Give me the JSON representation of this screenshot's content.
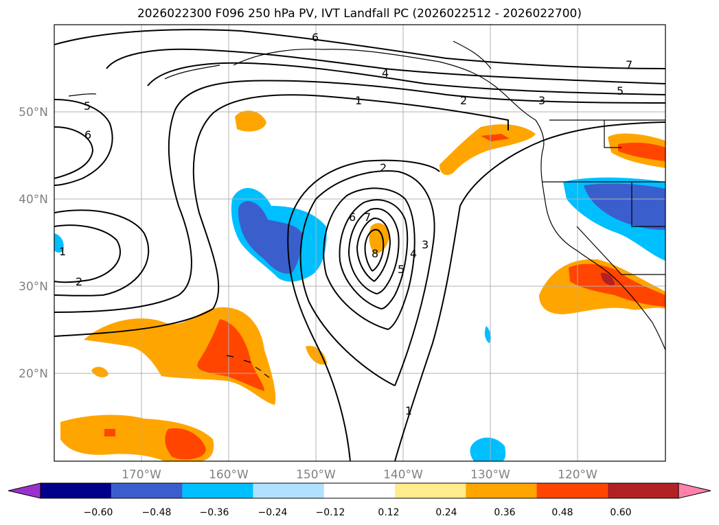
{
  "title": "2026022300 F096 250 hPa PV, IVT Landfall PC (2026022512 - 2026022700)",
  "map": {
    "lon_labels": [
      "170°W",
      "160°W",
      "150°W",
      "140°W",
      "130°W",
      "120°W"
    ],
    "lat_labels": [
      "50°N",
      "40°N",
      "30°N",
      "20°N"
    ]
  },
  "contour_labels": [
    "6",
    "4",
    "7",
    "5",
    "1",
    "2",
    "3",
    "5",
    "6",
    "2",
    "6",
    "7",
    "8",
    "5",
    "4",
    "3",
    "1",
    "1",
    "2"
  ],
  "colorbar": {
    "ticks": [
      "−0.60",
      "−0.48",
      "−0.36",
      "−0.24",
      "−0.12",
      "0.12",
      "0.24",
      "0.36",
      "0.48",
      "0.60"
    ],
    "colors": [
      "#9932cc",
      "#00008b",
      "#3a5fcd",
      "#00bfff",
      "#b0e2ff",
      "#ffffff",
      "#ffec8b",
      "#ffa500",
      "#ff4500",
      "#b22222",
      "#ff82ab"
    ]
  }
}
